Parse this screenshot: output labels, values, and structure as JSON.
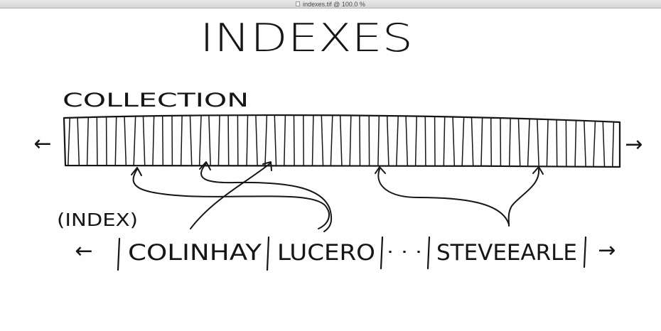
{
  "window": {
    "title": "indexes.tif @ 100.0 %",
    "icon": "document-icon"
  },
  "diagram": {
    "heading": "INDEXES",
    "collection_label": "COLLECTION",
    "index_label": "(INDEX)",
    "index_entries": [
      "COLINHAY",
      "LUCERO",
      "STEVEEARLE"
    ],
    "ellipsis": "· · ·",
    "arrows": {
      "collection_left": "←",
      "collection_right": "→",
      "index_left": "←",
      "index_right": "→"
    }
  }
}
